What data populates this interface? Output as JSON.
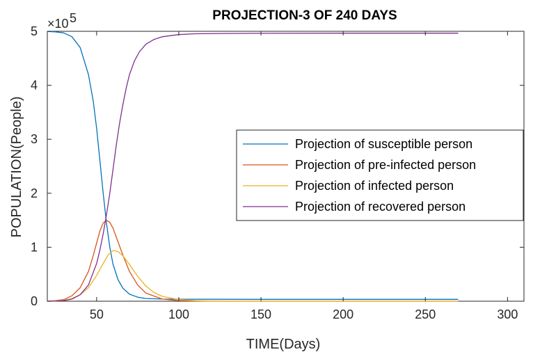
{
  "chart_data": {
    "type": "line",
    "title": "PROJECTION-3 OF 240 DAYS",
    "xlabel": "TIME(Days)",
    "ylabel": "POPULATION(People)",
    "y_multiplier_label": "×10",
    "y_multiplier_exponent": "5",
    "xlim": [
      20,
      310
    ],
    "ylim": [
      0,
      500000
    ],
    "x_ticks": [
      50,
      100,
      150,
      200,
      250,
      300
    ],
    "y_ticks": [
      0,
      1,
      2,
      3,
      4,
      5
    ],
    "grid": false,
    "legend_position": "center-right",
    "series": [
      {
        "name": "Projection of susceptible person",
        "color": "#0072BD",
        "x": [
          20,
          25,
          30,
          35,
          40,
          45,
          48,
          50,
          52,
          54,
          56,
          58,
          60,
          63,
          66,
          70,
          75,
          80,
          90,
          100,
          120,
          150,
          200,
          270
        ],
        "y": [
          499800,
          499000,
          497000,
          490000,
          470000,
          420000,
          370000,
          320000,
          260000,
          200000,
          145000,
          100000,
          68000,
          40000,
          24000,
          13000,
          7500,
          5000,
          4000,
          3700,
          3600,
          3500,
          3500,
          3500
        ]
      },
      {
        "name": "Projection of pre-infected person",
        "color": "#D95319",
        "x": [
          20,
          25,
          30,
          35,
          40,
          45,
          48,
          50,
          52,
          54,
          56,
          58,
          60,
          63,
          66,
          70,
          75,
          80,
          90,
          100,
          120,
          150,
          200,
          270
        ],
        "y": [
          0,
          1000,
          3000,
          10000,
          25000,
          55000,
          85000,
          108000,
          130000,
          145000,
          150000,
          146000,
          135000,
          110000,
          85000,
          55000,
          30000,
          15000,
          4000,
          1000,
          0,
          0,
          0,
          0
        ]
      },
      {
        "name": "Projection of infected person",
        "color": "#EDB120",
        "x": [
          20,
          25,
          30,
          35,
          40,
          45,
          50,
          54,
          57,
          60,
          63,
          66,
          70,
          75,
          80,
          85,
          90,
          100,
          110,
          120,
          150,
          200,
          270
        ],
        "y": [
          0,
          500,
          1500,
          5000,
          12000,
          25000,
          48000,
          70000,
          86000,
          94000,
          92000,
          84000,
          68000,
          46000,
          28000,
          16000,
          9000,
          3000,
          1000,
          300,
          0,
          0,
          0
        ]
      },
      {
        "name": "Projection of recovered person",
        "color": "#7E2F8E",
        "x": [
          20,
          25,
          30,
          35,
          40,
          45,
          50,
          52,
          54,
          56,
          58,
          60,
          62,
          64,
          66,
          68,
          70,
          73,
          76,
          80,
          85,
          90,
          100,
          110,
          130,
          150,
          200,
          270
        ],
        "y": [
          0,
          300,
          1200,
          4000,
          12000,
          30000,
          70000,
          95000,
          125000,
          160000,
          200000,
          245000,
          290000,
          330000,
          365000,
          395000,
          420000,
          445000,
          462000,
          476000,
          485000,
          490000,
          494000,
          495500,
          496000,
          496300,
          496500,
          496500
        ]
      }
    ]
  }
}
